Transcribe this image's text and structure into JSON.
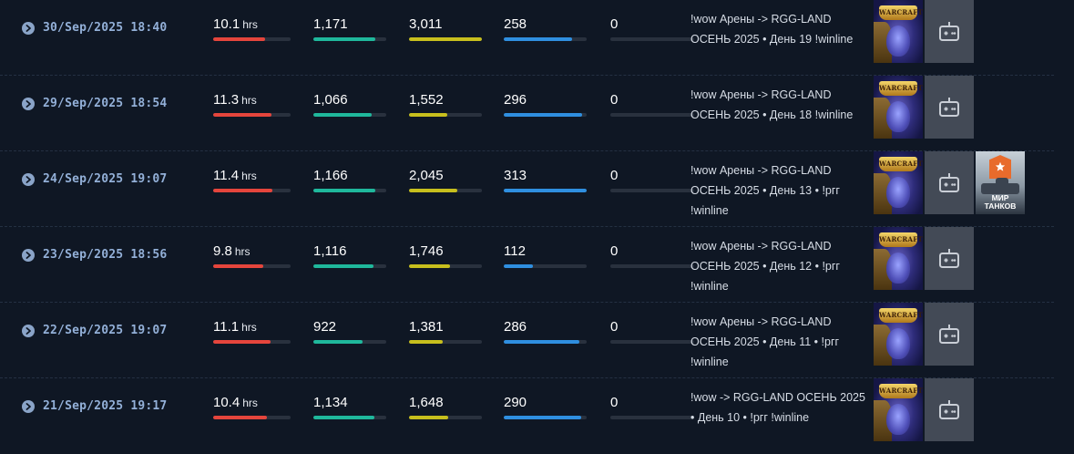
{
  "streams": [
    {
      "date": "30/Sep/2025 18:40",
      "hours": "10.1",
      "hours_unit": "hrs",
      "hours_fill": 0.67,
      "avg_viewers": "1,171",
      "avg_fill": 0.85,
      "peak_viewers": "3,011",
      "peak_fill": 1.0,
      "followers": "258",
      "followers_fill": 0.82,
      "subs": "0",
      "subs_fill": 0,
      "title": "!wow Арены -> RGG-LAND ОСЕНЬ 2025 • День 19 !winline",
      "games": [
        "wow",
        "placeholder"
      ]
    },
    {
      "date": "29/Sep/2025 18:54",
      "hours": "11.3",
      "hours_unit": "hrs",
      "hours_fill": 0.75,
      "avg_viewers": "1,066",
      "avg_fill": 0.8,
      "peak_viewers": "1,552",
      "peak_fill": 0.52,
      "followers": "296",
      "followers_fill": 0.94,
      "subs": "0",
      "subs_fill": 0,
      "title": "!wow Арены -> RGG-LAND ОСЕНЬ 2025 • День 18 !winline",
      "games": [
        "wow",
        "placeholder"
      ]
    },
    {
      "date": "24/Sep/2025 19:07",
      "hours": "11.4",
      "hours_unit": "hrs",
      "hours_fill": 0.77,
      "avg_viewers": "1,166",
      "avg_fill": 0.85,
      "peak_viewers": "2,045",
      "peak_fill": 0.66,
      "followers": "313",
      "followers_fill": 1.0,
      "subs": "0",
      "subs_fill": 0,
      "title": "!wow Арены -> RGG-LAND ОСЕНЬ 2025 • День 13 • !ргг !winline",
      "games": [
        "wow",
        "placeholder",
        "tanks"
      ],
      "tanks_label": "МИР ТАНКОВ"
    },
    {
      "date": "23/Sep/2025 18:56",
      "hours": "9.8",
      "hours_unit": "hrs",
      "hours_fill": 0.65,
      "avg_viewers": "1,116",
      "avg_fill": 0.83,
      "peak_viewers": "1,746",
      "peak_fill": 0.56,
      "followers": "112",
      "followers_fill": 0.35,
      "subs": "0",
      "subs_fill": 0,
      "title": "!wow Арены -> RGG-LAND ОСЕНЬ 2025 • День 12 • !ргг !winline",
      "games": [
        "wow",
        "placeholder"
      ]
    },
    {
      "date": "22/Sep/2025 19:07",
      "hours": "11.1",
      "hours_unit": "hrs",
      "hours_fill": 0.74,
      "avg_viewers": "922",
      "avg_fill": 0.68,
      "peak_viewers": "1,381",
      "peak_fill": 0.46,
      "followers": "286",
      "followers_fill": 0.91,
      "subs": "0",
      "subs_fill": 0,
      "title": "!wow Арены -> RGG-LAND ОСЕНЬ 2025 • День 11 • !ргг !winline",
      "games": [
        "wow",
        "placeholder"
      ]
    },
    {
      "date": "21/Sep/2025 19:17",
      "hours": "10.4",
      "hours_unit": "hrs",
      "hours_fill": 0.69,
      "avg_viewers": "1,134",
      "avg_fill": 0.84,
      "peak_viewers": "1,648",
      "peak_fill": 0.54,
      "followers": "290",
      "followers_fill": 0.93,
      "subs": "0",
      "subs_fill": 0,
      "title": "!wow -> RGG-LAND ОСЕНЬ 2025 • День 10 • !ргг !winline",
      "games": [
        "wow",
        "placeholder"
      ]
    }
  ],
  "icons": {
    "expand": "chevron-right-circle-icon",
    "placeholder": "gamepad-icon",
    "tanks_badge": "star-badge-icon"
  },
  "wow_logo_text": "WARCRAFT",
  "colors": {
    "background": "#0f1724",
    "hours": "#e5453c",
    "avg_viewers": "#1fb89c",
    "peak_viewers": "#c7bf1d",
    "followers": "#2f8fe0",
    "subs": "#2f8fe0",
    "date": "#93b0d8"
  }
}
